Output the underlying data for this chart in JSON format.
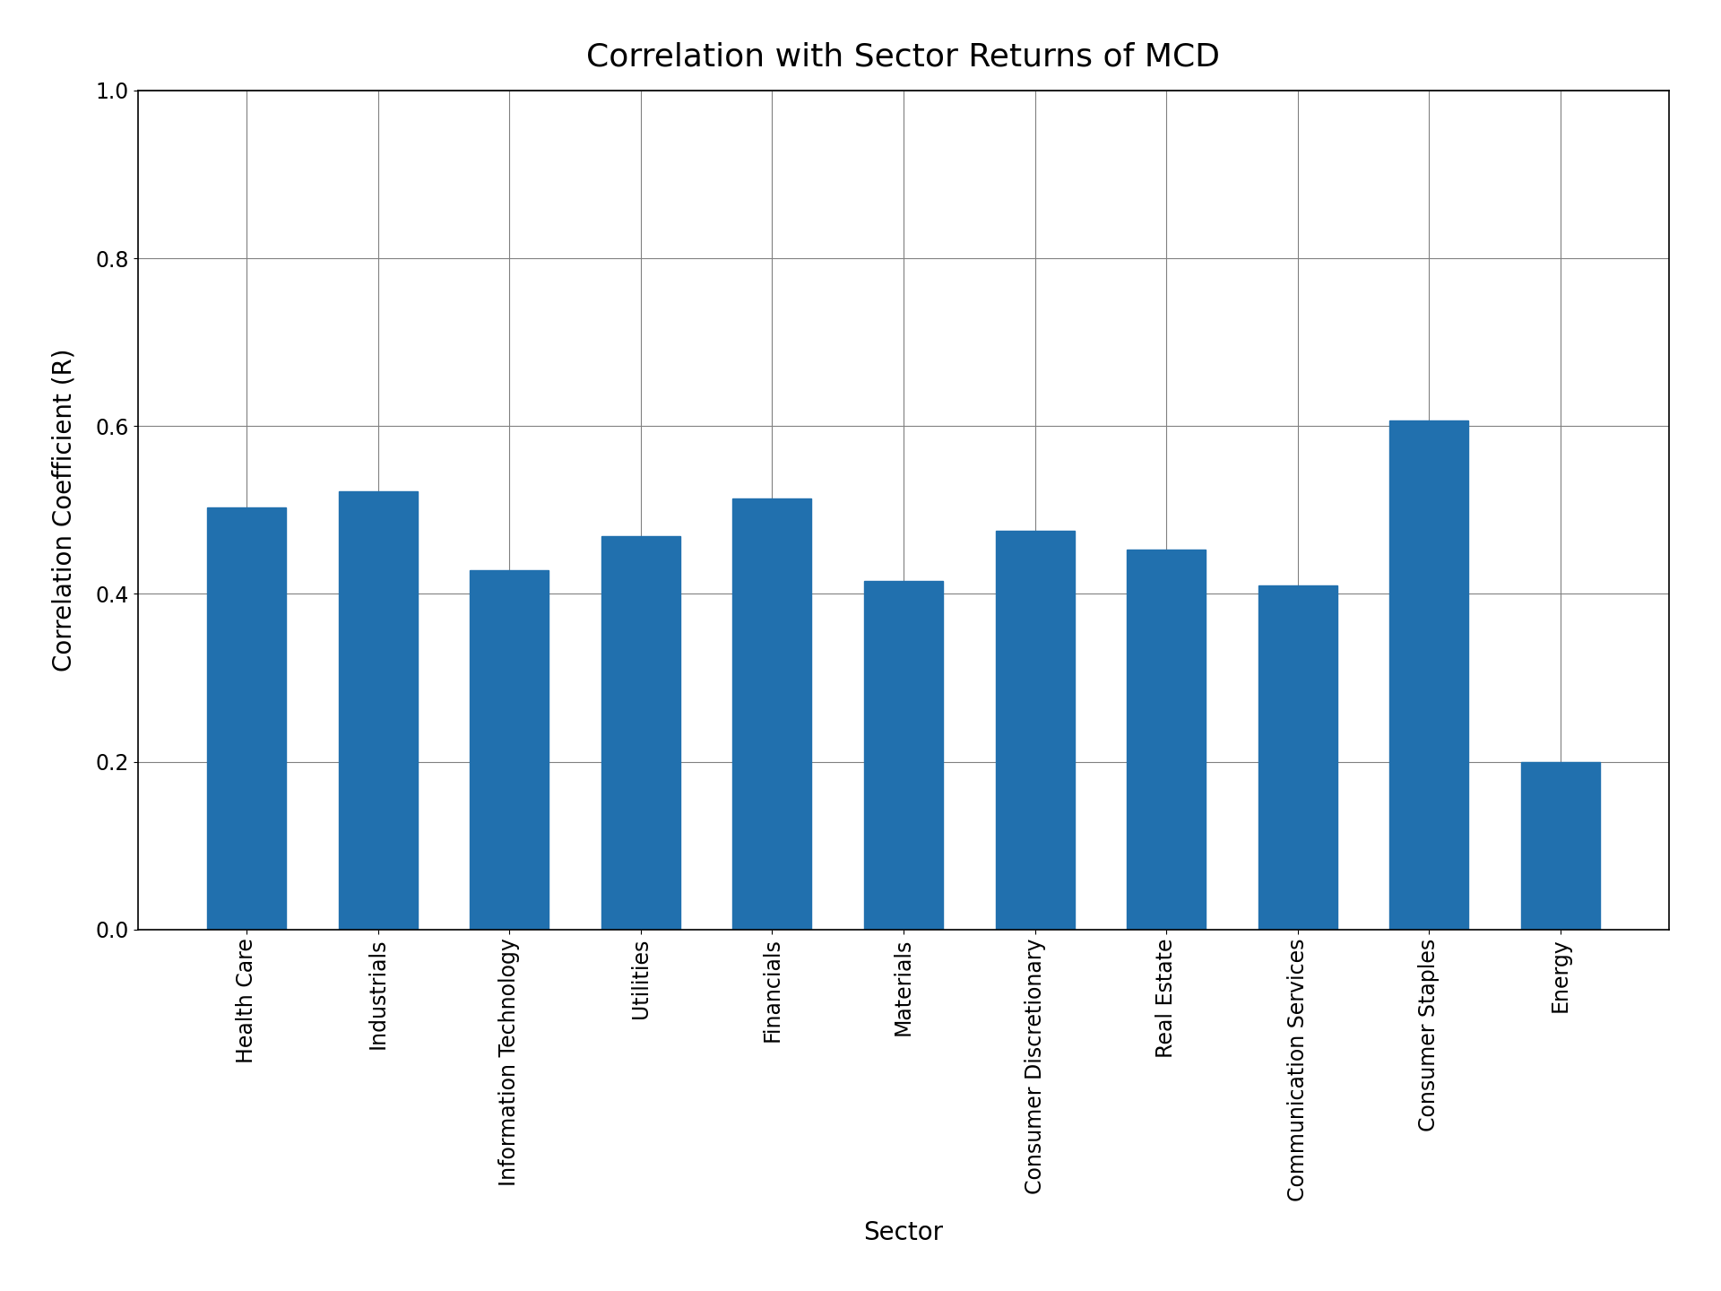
{
  "title": "Correlation with Sector Returns of MCD",
  "xlabel": "Sector",
  "ylabel": "Correlation Coefficient (R)",
  "categories": [
    "Health Care",
    "Industrials",
    "Information Technology",
    "Utilities",
    "Financials",
    "Materials",
    "Consumer Discretionary",
    "Real Estate",
    "Communication Services",
    "Consumer Staples",
    "Energy"
  ],
  "values": [
    0.503,
    0.522,
    0.428,
    0.469,
    0.514,
    0.415,
    0.475,
    0.453,
    0.41,
    0.607,
    0.2
  ],
  "bar_color": "#2170ae",
  "ylim": [
    0.0,
    1.0
  ],
  "yticks": [
    0.0,
    0.2,
    0.4,
    0.6,
    0.8,
    1.0
  ],
  "title_fontsize": 26,
  "label_fontsize": 20,
  "tick_fontsize": 17,
  "figsize": [
    19.2,
    14.4
  ],
  "dpi": 100,
  "grid": true,
  "bar_width": 0.6,
  "bg_color": "#ffffff"
}
